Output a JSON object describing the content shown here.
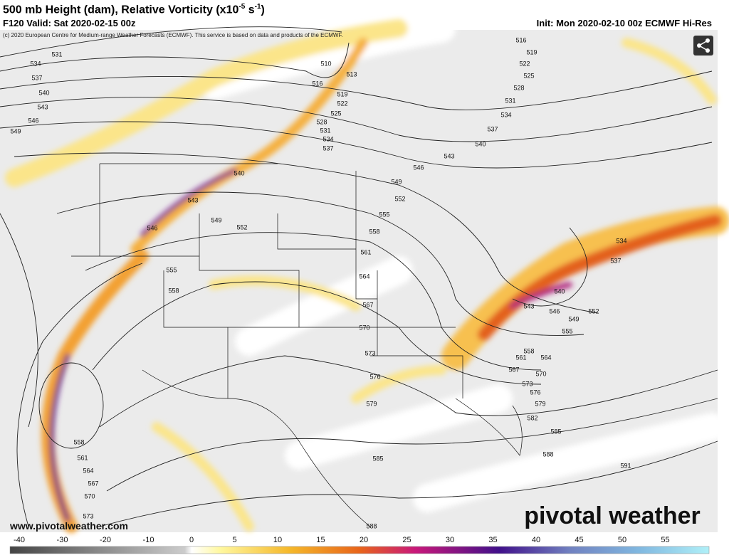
{
  "header": {
    "title": [
      "500 mb Height (dam), Relative Vorticity (x10",
      "-5",
      " s",
      "-1",
      ")"
    ],
    "valid": "F120 Valid: Sat 2020-02-15 00z",
    "init": "Init: Mon 2020-02-10 00z ECMWF Hi-Res",
    "copyright": "(c) 2020 European Centre for Medium-range Weather Forecasts (ECMWF). This service is based on data and products of the ECMWF."
  },
  "map": {
    "contour_labels": [
      531,
      534,
      537,
      540,
      543,
      546,
      549,
      510,
      513,
      516,
      519,
      522,
      525,
      528,
      531,
      534,
      537,
      516,
      519,
      522,
      525,
      528,
      531,
      534,
      537,
      540,
      543,
      546,
      549,
      552,
      555,
      558,
      561,
      564,
      567,
      570,
      573,
      576,
      579,
      582,
      585,
      588,
      591,
      585,
      588,
      540,
      543,
      546,
      549,
      552,
      555,
      558,
      558,
      561,
      564,
      567,
      570,
      573,
      534,
      537,
      540,
      543,
      546,
      549,
      552,
      555,
      558,
      561,
      564,
      567,
      570,
      573,
      576,
      579
    ],
    "url": "www.pivotalweather.com",
    "watermark": "pivotal weather"
  },
  "colorbar": {
    "labels": [
      -40,
      -30,
      -20,
      -10,
      0,
      5,
      10,
      15,
      20,
      25,
      30,
      35,
      40,
      45,
      50,
      55
    ]
  }
}
